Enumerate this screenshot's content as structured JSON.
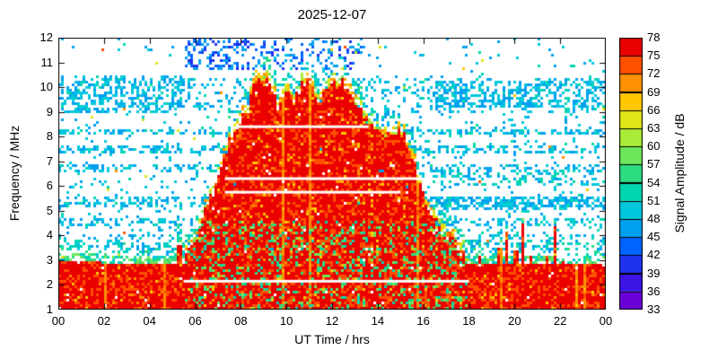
{
  "chart_data": {
    "type": "heatmap",
    "title": "2025-12-07",
    "xlabel": "UT Time / hrs",
    "ylabel": "Frequency / MHz",
    "colorbar_label": "Signal Amplitude / dB",
    "x_range": [
      0,
      24
    ],
    "y_range": [
      1,
      12
    ],
    "grid": false,
    "x_ticks": [
      {
        "v": 0,
        "label": "00"
      },
      {
        "v": 2,
        "label": "02"
      },
      {
        "v": 4,
        "label": "04"
      },
      {
        "v": 6,
        "label": "06"
      },
      {
        "v": 8,
        "label": "08"
      },
      {
        "v": 10,
        "label": "10"
      },
      {
        "v": 12,
        "label": "12"
      },
      {
        "v": 14,
        "label": "14"
      },
      {
        "v": 16,
        "label": "16"
      },
      {
        "v": 18,
        "label": "18"
      },
      {
        "v": 20,
        "label": "20"
      },
      {
        "v": 22,
        "label": "22"
      },
      {
        "v": 24,
        "label": "00"
      }
    ],
    "y_ticks": [
      1,
      2,
      3,
      4,
      5,
      6,
      7,
      8,
      9,
      10,
      11,
      12
    ],
    "colorbar": {
      "min": 33,
      "max": 78,
      "ticks": [
        33,
        36,
        39,
        42,
        45,
        48,
        51,
        54,
        57,
        60,
        63,
        66,
        69,
        72,
        75,
        78
      ],
      "segments": [
        {
          "from": 33,
          "to": 36,
          "color": "#6a00d8"
        },
        {
          "from": 36,
          "to": 39,
          "color": "#3c14e6"
        },
        {
          "from": 39,
          "to": 42,
          "color": "#1e32f0"
        },
        {
          "from": 42,
          "to": 45,
          "color": "#0064ff"
        },
        {
          "from": 45,
          "to": 48,
          "color": "#00a0f0"
        },
        {
          "from": 48,
          "to": 51,
          "color": "#00c8dc"
        },
        {
          "from": 51,
          "to": 54,
          "color": "#00d7ae"
        },
        {
          "from": 54,
          "to": 57,
          "color": "#2edc82"
        },
        {
          "from": 57,
          "to": 60,
          "color": "#6ee65a"
        },
        {
          "from": 60,
          "to": 63,
          "color": "#aaeb37"
        },
        {
          "from": 63,
          "to": 66,
          "color": "#e1e619"
        },
        {
          "from": 66,
          "to": 69,
          "color": "#ffc800"
        },
        {
          "from": 69,
          "to": 72,
          "color": "#ff9100"
        },
        {
          "from": 72,
          "to": 75,
          "color": "#ff5000"
        },
        {
          "from": 75,
          "to": 78,
          "color": "#eb0000"
        }
      ]
    },
    "features": {
      "daytime_plume": {
        "t_start": 5.5,
        "t_end": 18.0,
        "amplitude_db": [
          72,
          78
        ],
        "envelope_points": [
          [
            5.5,
            2.9
          ],
          [
            6.0,
            3.8
          ],
          [
            6.5,
            5.2
          ],
          [
            7.0,
            6.4
          ],
          [
            7.5,
            7.8
          ],
          [
            7.9,
            8.6
          ],
          [
            8.3,
            9.0
          ],
          [
            8.6,
            10.3
          ],
          [
            9.0,
            10.5
          ],
          [
            9.3,
            9.8
          ],
          [
            9.6,
            9.3
          ],
          [
            10.0,
            10.0
          ],
          [
            10.3,
            9.5
          ],
          [
            10.7,
            10.1
          ],
          [
            11.0,
            10.2
          ],
          [
            11.3,
            9.5
          ],
          [
            11.7,
            9.8
          ],
          [
            12.0,
            10.1
          ],
          [
            12.4,
            10.3
          ],
          [
            12.7,
            9.8
          ],
          [
            13.0,
            9.2
          ],
          [
            13.4,
            8.7
          ],
          [
            14.0,
            8.3
          ],
          [
            14.5,
            8.0
          ],
          [
            14.9,
            8.3
          ],
          [
            15.2,
            7.8
          ],
          [
            15.6,
            6.8
          ],
          [
            16.0,
            5.6
          ],
          [
            16.5,
            4.6
          ],
          [
            17.0,
            4.0
          ],
          [
            17.5,
            3.5
          ],
          [
            18.0,
            3.0
          ]
        ]
      },
      "low_band": {
        "amplitude_db": [
          72,
          78
        ],
        "top_points": [
          [
            0,
            3.0
          ],
          [
            2,
            2.9
          ],
          [
            4,
            2.8
          ],
          [
            5,
            2.8
          ],
          [
            6,
            2.9
          ],
          [
            8,
            3.0
          ],
          [
            10,
            3.1
          ],
          [
            12,
            3.2
          ],
          [
            14,
            3.1
          ],
          [
            16,
            3.0
          ],
          [
            18,
            2.9
          ],
          [
            20,
            2.8
          ],
          [
            22,
            2.8
          ],
          [
            24,
            2.9
          ]
        ]
      },
      "white_lines": [
        {
          "f": 8.4,
          "t0": 7.9,
          "t1": 13.6
        },
        {
          "f": 6.3,
          "t0": 7.3,
          "t1": 15.8
        },
        {
          "f": 5.75,
          "t0": 7.3,
          "t1": 15.0
        },
        {
          "f": 2.15,
          "t0": 5.5,
          "t1": 18.0
        }
      ],
      "spikes": [
        {
          "t": 5.3,
          "f": 3.6
        },
        {
          "t": 18.4,
          "f": 3.3
        },
        {
          "t": 19.3,
          "f": 3.5
        },
        {
          "t": 19.6,
          "f": 4.2
        },
        {
          "t": 20.0,
          "f": 3.4
        },
        {
          "t": 20.3,
          "f": 4.5
        },
        {
          "t": 20.6,
          "f": 3.2
        },
        {
          "t": 21.4,
          "f": 3.2
        },
        {
          "t": 21.7,
          "f": 4.4
        },
        {
          "t": 22.1,
          "f": 3.0
        }
      ],
      "scatter_patches": [
        {
          "t0": 5.5,
          "t1": 8.3,
          "f0": 10.7,
          "f1": 12.0,
          "density": 0.45,
          "db": [
            39,
            48
          ]
        },
        {
          "t0": 8.3,
          "t1": 13.3,
          "f0": 10.7,
          "f1": 12.0,
          "density": 0.18,
          "db": [
            39,
            48
          ]
        },
        {
          "t0": 16.5,
          "t1": 24,
          "f0": 9.2,
          "f1": 10.3,
          "density": 0.4,
          "db": [
            45,
            51
          ]
        },
        {
          "t0": 0,
          "t1": 5.5,
          "f0": 9.0,
          "f1": 10.5,
          "density": 0.3,
          "db": [
            45,
            51
          ]
        },
        {
          "t0": 16.3,
          "t1": 24,
          "f0": 5.0,
          "f1": 5.6,
          "density": 0.45,
          "db": [
            45,
            51
          ]
        },
        {
          "t0": 16.3,
          "t1": 24,
          "f0": 6.0,
          "f1": 6.5,
          "density": 0.3,
          "db": [
            45,
            54
          ]
        }
      ],
      "interference_bands": [
        {
          "f0": 9.0,
          "f1": 10.4,
          "density": 0.22
        },
        {
          "f0": 8.05,
          "f1": 8.35,
          "density": 0.5
        },
        {
          "f0": 7.35,
          "f1": 7.65,
          "density": 0.45
        },
        {
          "f0": 6.55,
          "f1": 6.85,
          "density": 0.38
        },
        {
          "f0": 5.15,
          "f1": 5.6,
          "density": 0.42
        },
        {
          "f0": 4.35,
          "f1": 4.65,
          "density": 0.38
        },
        {
          "f0": 3.4,
          "f1": 4.0,
          "density": 0.22
        }
      ],
      "background_noise": {
        "density_low": 0.06,
        "density_high": 0.025,
        "split_f": 10.5,
        "db": [
          45,
          52
        ]
      }
    }
  }
}
